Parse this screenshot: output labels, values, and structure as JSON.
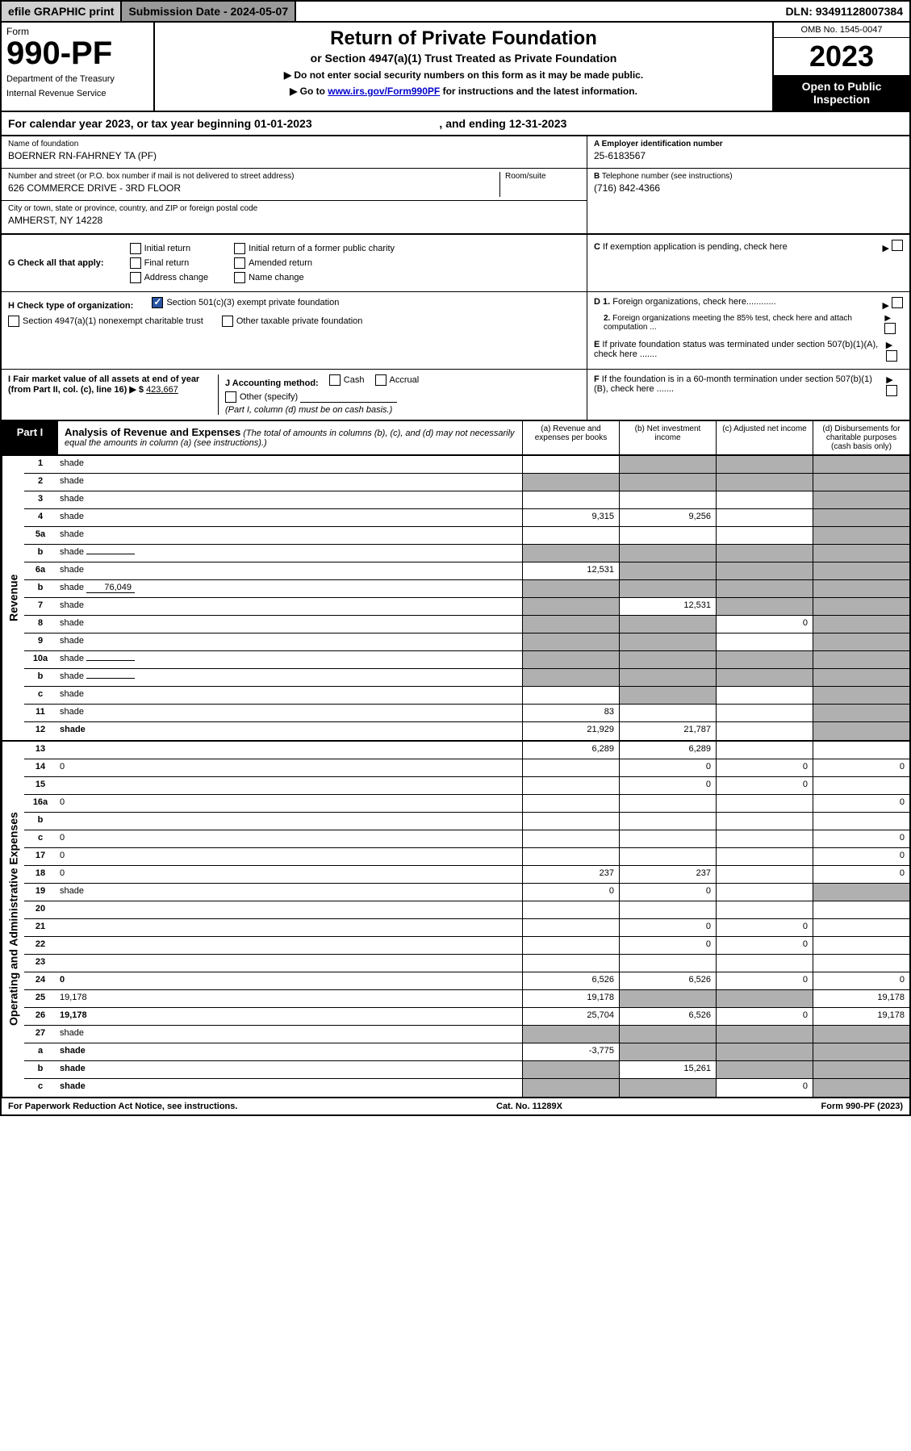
{
  "topbar": {
    "efile_label": "efile GRAPHIC print",
    "sub_date_label": "Submission Date - ",
    "sub_date_val": "2024-05-07",
    "dln_label": "DLN: ",
    "dln_val": "93491128007384"
  },
  "header": {
    "form_label": "Form",
    "form_number": "990-PF",
    "dept1": "Department of the Treasury",
    "dept2": "Internal Revenue Service",
    "title": "Return of Private Foundation",
    "subtitle": "or Section 4947(a)(1) Trust Treated as Private Foundation",
    "note1": "▶ Do not enter social security numbers on this form as it may be made public.",
    "note2_pre": "▶ Go to ",
    "note2_link": "www.irs.gov/Form990PF",
    "note2_post": " for instructions and the latest information.",
    "omb": "OMB No. 1545-0047",
    "tax_year": "2023",
    "open_public": "Open to Public Inspection"
  },
  "cal_year": {
    "text_pre": "For calendar year 2023, or tax year beginning ",
    "begin": "01-01-2023",
    "mid": " , and ending ",
    "end": "12-31-2023"
  },
  "info": {
    "name_label": "Name of foundation",
    "name_val": "BOERNER RN-FAHRNEY TA (PF)",
    "addr_label": "Number and street (or P.O. box number if mail is not delivered to street address)",
    "room_label": "Room/suite",
    "addr_val": "626 COMMERCE DRIVE - 3RD FLOOR",
    "city_label": "City or town, state or province, country, and ZIP or foreign postal code",
    "city_val": "AMHERST, NY  14228",
    "ein_label": "A Employer identification number",
    "ein_val": "25-6183567",
    "phone_label_b": "B",
    "phone_label": " Telephone number (see instructions)",
    "phone_val": "(716) 842-4366",
    "c_label_b": "C",
    "c_label": " If exemption application is pending, check here",
    "d1_label_b": "D 1.",
    "d1_label": " Foreign organizations, check here............",
    "d2_label_b": "2.",
    "d2_label": " Foreign organizations meeting the 85% test, check here and attach computation ...",
    "e_label_b": "E",
    "e_label": " If private foundation status was terminated under section 507(b)(1)(A), check here .......",
    "f_label_b": "F",
    "f_label": " If the foundation is in a 60-month termination under section 507(b)(1)(B), check here ......."
  },
  "checks": {
    "g_label": "G Check all that apply:",
    "g_initial": "Initial return",
    "g_final": "Final return",
    "g_addr": "Address change",
    "g_initial_former": "Initial return of a former public charity",
    "g_amended": "Amended return",
    "g_name": "Name change",
    "h_label": "H Check type of organization:",
    "h_501c3": "Section 501(c)(3) exempt private foundation",
    "h_4947": "Section 4947(a)(1) nonexempt charitable trust",
    "h_other": "Other taxable private foundation",
    "i_label": "I Fair market value of all assets at end of year (from Part II, col. (c), line 16) ▶ $",
    "i_val": "423,667",
    "j_label": "J Accounting method:",
    "j_cash": "Cash",
    "j_accrual": "Accrual",
    "j_other": "Other (specify)",
    "j_note": "(Part I, column (d) must be on cash basis.)"
  },
  "part1": {
    "label": "Part I",
    "title": "Analysis of Revenue and Expenses",
    "title_note": " (The total of amounts in columns (b), (c), and (d) may not necessarily equal the amounts in column (a) (see instructions).)",
    "col_a": "(a) Revenue and expenses per books",
    "col_b": "(b) Net investment income",
    "col_c": "(c) Adjusted net income",
    "col_d": "(d) Disbursements for charitable purposes (cash basis only)"
  },
  "side_labels": {
    "revenue": "Revenue",
    "expenses": "Operating and Administrative Expenses"
  },
  "rows": [
    {
      "n": "1",
      "d": "shade",
      "a": "",
      "b": "shade",
      "c": "shade"
    },
    {
      "n": "2",
      "d": "shade",
      "a": "shade",
      "b": "shade",
      "c": "shade"
    },
    {
      "n": "3",
      "d": "shade",
      "a": "",
      "b": "",
      "c": ""
    },
    {
      "n": "4",
      "d": "shade",
      "a": "9,315",
      "b": "9,256",
      "c": ""
    },
    {
      "n": "5a",
      "d": "shade",
      "a": "",
      "b": "",
      "c": ""
    },
    {
      "n": "b",
      "d": "shade",
      "a": "shade",
      "b": "shade",
      "c": "shade",
      "inline": ""
    },
    {
      "n": "6a",
      "d": "shade",
      "a": "12,531",
      "b": "shade",
      "c": "shade"
    },
    {
      "n": "b",
      "d": "shade",
      "inline": "76,049",
      "a": "shade",
      "b": "shade",
      "c": "shade"
    },
    {
      "n": "7",
      "d": "shade",
      "a": "shade",
      "b": "12,531",
      "c": "shade"
    },
    {
      "n": "8",
      "d": "shade",
      "a": "shade",
      "b": "shade",
      "c": "0"
    },
    {
      "n": "9",
      "d": "shade",
      "a": "shade",
      "b": "shade",
      "c": ""
    },
    {
      "n": "10a",
      "d": "shade",
      "inline": "",
      "a": "shade",
      "b": "shade",
      "c": "shade"
    },
    {
      "n": "b",
      "d": "shade",
      "inline": "",
      "a": "shade",
      "b": "shade",
      "c": "shade"
    },
    {
      "n": "c",
      "d": "shade",
      "a": "",
      "b": "shade",
      "c": ""
    },
    {
      "n": "11",
      "d": "shade",
      "a": "83",
      "b": "",
      "c": ""
    },
    {
      "n": "12",
      "d": "shade",
      "bold": true,
      "a": "21,929",
      "b": "21,787",
      "c": ""
    }
  ],
  "exp_rows": [
    {
      "n": "13",
      "d": "",
      "a": "6,289",
      "b": "6,289",
      "c": ""
    },
    {
      "n": "14",
      "d": "0",
      "a": "",
      "b": "0",
      "c": "0"
    },
    {
      "n": "15",
      "d": "",
      "a": "",
      "b": "0",
      "c": "0"
    },
    {
      "n": "16a",
      "d": "0",
      "a": "",
      "b": "",
      "c": ""
    },
    {
      "n": "b",
      "d": "",
      "a": "",
      "b": "",
      "c": ""
    },
    {
      "n": "c",
      "d": "0",
      "a": "",
      "b": "",
      "c": ""
    },
    {
      "n": "17",
      "d": "0",
      "a": "",
      "b": "",
      "c": ""
    },
    {
      "n": "18",
      "d": "0",
      "a": "237",
      "b": "237",
      "c": ""
    },
    {
      "n": "19",
      "d": "shade",
      "a": "0",
      "b": "0",
      "c": ""
    },
    {
      "n": "20",
      "d": "",
      "a": "",
      "b": "",
      "c": ""
    },
    {
      "n": "21",
      "d": "",
      "a": "",
      "b": "0",
      "c": "0"
    },
    {
      "n": "22",
      "d": "",
      "a": "",
      "b": "0",
      "c": "0"
    },
    {
      "n": "23",
      "d": "",
      "a": "",
      "b": "",
      "c": ""
    },
    {
      "n": "24",
      "d": "0",
      "bold": true,
      "a": "6,526",
      "b": "6,526",
      "c": "0"
    },
    {
      "n": "25",
      "d": "19,178",
      "a": "19,178",
      "b": "shade",
      "c": "shade"
    },
    {
      "n": "26",
      "d": "19,178",
      "bold": true,
      "a": "25,704",
      "b": "6,526",
      "c": "0"
    },
    {
      "n": "27",
      "d": "shade",
      "a": "shade",
      "b": "shade",
      "c": "shade"
    },
    {
      "n": "a",
      "d": "shade",
      "bold": true,
      "a": "-3,775",
      "b": "shade",
      "c": "shade"
    },
    {
      "n": "b",
      "d": "shade",
      "bold": true,
      "a": "shade",
      "b": "15,261",
      "c": "shade"
    },
    {
      "n": "c",
      "d": "shade",
      "bold": true,
      "a": "shade",
      "b": "shade",
      "c": "0"
    }
  ],
  "footer": {
    "left": "For Paperwork Reduction Act Notice, see instructions.",
    "mid": "Cat. No. 11289X",
    "right": "Form 990-PF (2023)"
  },
  "colors": {
    "shade": "#b0b0b0",
    "topbar_gray": "#9a9a9a",
    "link": "#0000cc",
    "check_blue": "#2854a0"
  }
}
